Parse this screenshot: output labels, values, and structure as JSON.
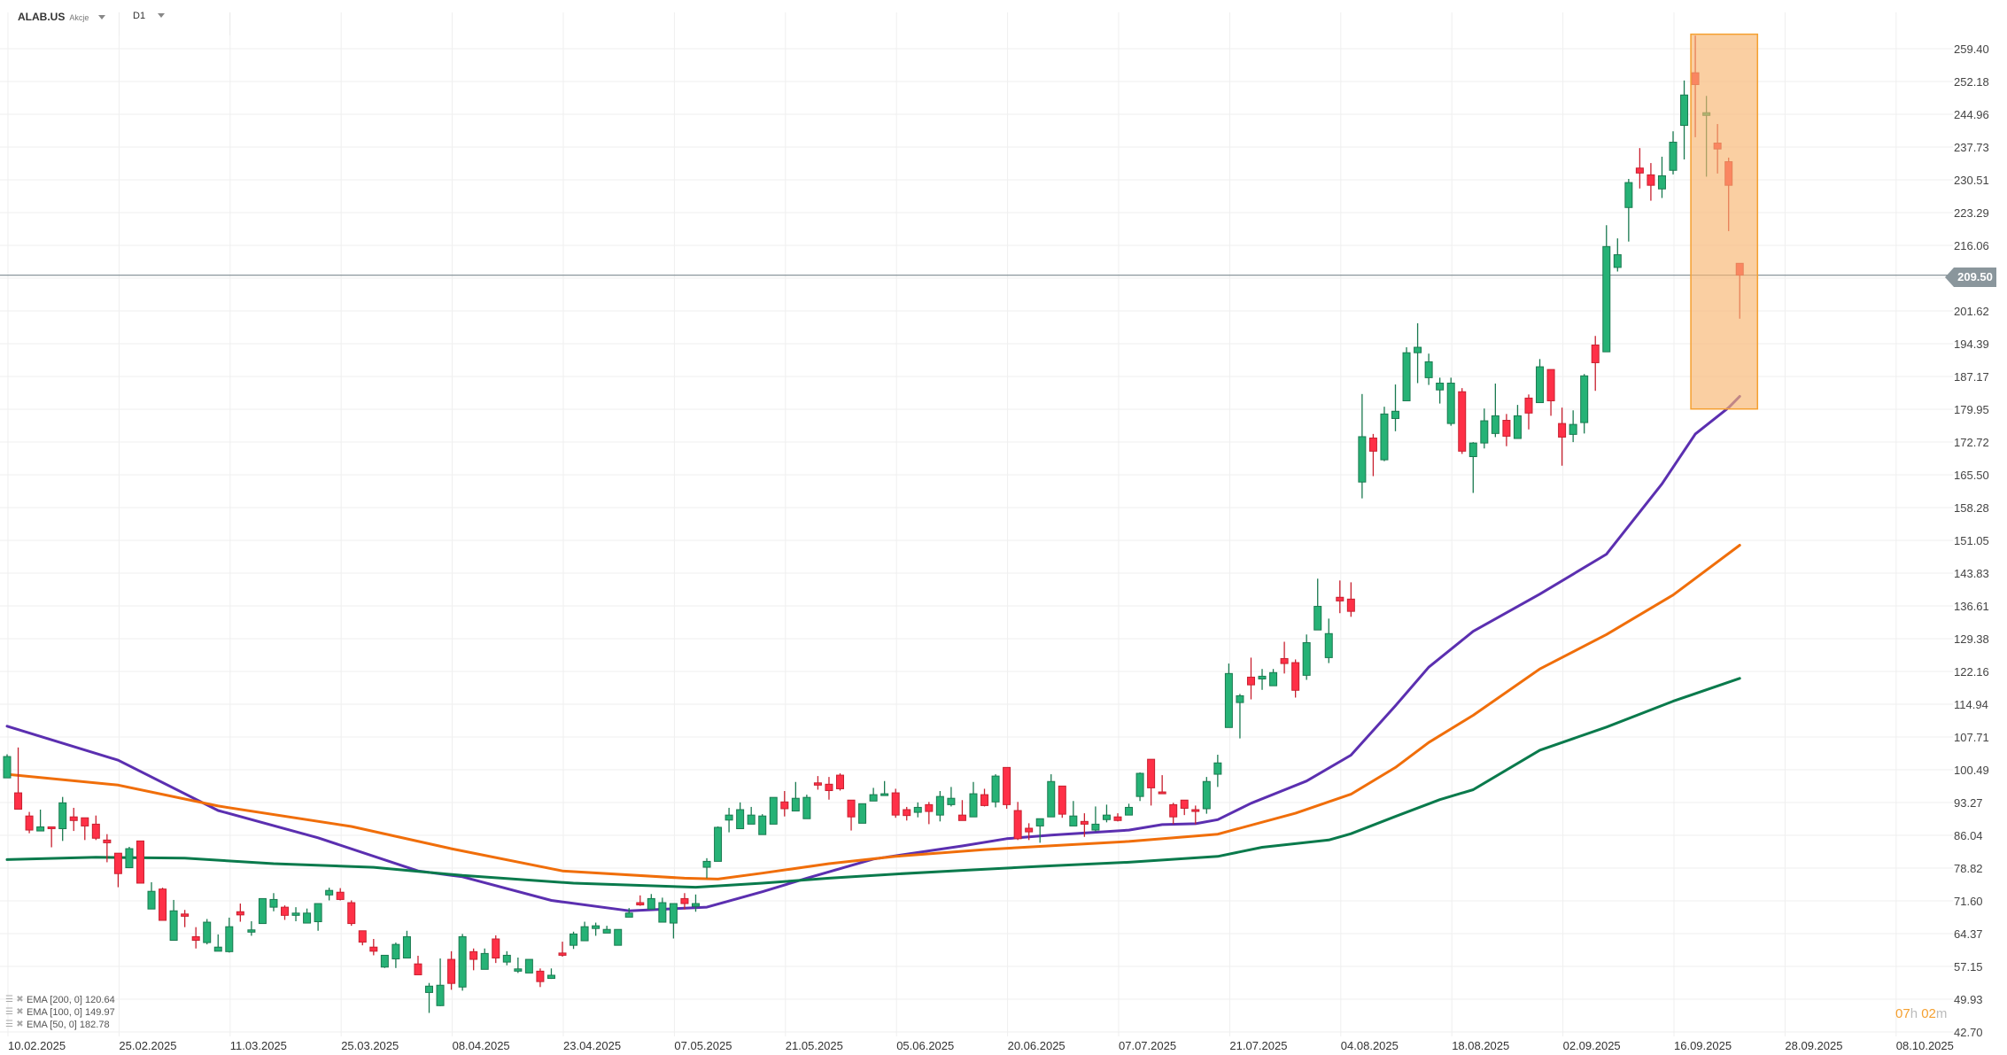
{
  "header": {
    "symbol": "ALAB.US",
    "instrument_type": "Akcje",
    "timeframe": "D1"
  },
  "legend": [
    {
      "label": "EMA [200,  0] 120.64",
      "color": "#0a7a4c"
    },
    {
      "label": "EMA [100,  0] 149.97",
      "color": "#f06e0a"
    },
    {
      "label": "EMA [50,  0] 182.78",
      "color": "#5b2fb0"
    }
  ],
  "current_price": "209.50",
  "countdown": {
    "hours": "07",
    "h": "h",
    "minutes": "02",
    "m": "m"
  },
  "colors": {
    "up": "#26b276",
    "up_border": "#1a7a50",
    "down": "#ff3047",
    "down_border": "#c8202f",
    "highlight": "#f7b570",
    "highlight_border": "#f5a030",
    "price_line": "#8a969c"
  },
  "chart_data": {
    "type": "candlestick",
    "title": "ALAB.US D1",
    "ylim": [
      42.7,
      259.4
    ],
    "grid": true,
    "yaxis": {
      "ticks": [
        "259.40",
        "252.18",
        "244.96",
        "237.73",
        "230.51",
        "223.29",
        "216.06",
        "208.84",
        "201.62",
        "194.39",
        "187.17",
        "179.95",
        "172.72",
        "165.50",
        "158.28",
        "151.05",
        "143.83",
        "136.61",
        "129.38",
        "122.16",
        "114.94",
        "107.71",
        "100.49",
        "93.27",
        "86.04",
        "78.82",
        "71.60",
        "64.37",
        "57.15",
        "49.93",
        "42.70"
      ],
      "hidden_tick": "208.84"
    },
    "xaxis": {
      "labels": [
        "10.02.2025",
        "25.02.2025",
        "11.03.2025",
        "25.03.2025",
        "08.04.2025",
        "23.04.2025",
        "07.05.2025",
        "21.05.2025",
        "05.06.2025",
        "20.06.2025",
        "07.07.2025",
        "21.07.2025",
        "04.08.2025",
        "18.08.2025",
        "02.09.2025",
        "16.09.2025",
        "28.09.2025",
        "08.10.2025"
      ],
      "bars_per_label": 10
    },
    "candles_ohlc": [
      [
        98.7,
        103.9,
        98.7,
        103.4
      ],
      [
        95.4,
        105.4,
        91.7,
        91.8
      ],
      [
        90.3,
        91.2,
        86.5,
        87.2
      ],
      [
        87.0,
        91.7,
        87.0,
        87.9
      ],
      [
        87.9,
        87.9,
        83.4,
        87.5
      ],
      [
        87.5,
        94.5,
        84.8,
        93.2
      ],
      [
        90.1,
        92.1,
        87.0,
        89.3
      ],
      [
        89.9,
        89.9,
        85.0,
        88.1
      ],
      [
        88.5,
        90.4,
        85.0,
        85.4
      ],
      [
        85.0,
        86.3,
        80.1,
        84.4
      ],
      [
        82.1,
        82.1,
        74.6,
        77.6
      ],
      [
        78.9,
        83.5,
        78.8,
        83.1
      ],
      [
        84.8,
        84.8,
        75.5,
        75.5
      ],
      [
        69.8,
        75.7,
        69.8,
        73.7
      ],
      [
        74.2,
        74.5,
        67.3,
        67.3
      ],
      [
        62.9,
        71.8,
        62.9,
        69.4
      ],
      [
        68.7,
        69.6,
        65.8,
        68.2
      ],
      [
        63.7,
        65.8,
        61.1,
        62.9
      ],
      [
        62.4,
        67.6,
        62.0,
        66.9
      ],
      [
        60.5,
        64.2,
        60.5,
        61.4
      ],
      [
        60.4,
        67.9,
        60.2,
        65.9
      ],
      [
        69.2,
        71.0,
        67.0,
        68.5
      ],
      [
        64.7,
        67.1,
        63.9,
        65.2
      ],
      [
        66.6,
        72.1,
        66.6,
        72.1
      ],
      [
        70.2,
        73.3,
        69.3,
        71.9
      ],
      [
        70.2,
        70.6,
        67.4,
        68.4
      ],
      [
        68.4,
        70.2,
        67.1,
        68.9
      ],
      [
        66.7,
        69.9,
        66.7,
        68.9
      ],
      [
        67.0,
        71.0,
        65.0,
        71.0
      ],
      [
        72.9,
        74.5,
        71.7,
        73.9
      ],
      [
        73.5,
        74.4,
        71.7,
        71.9
      ],
      [
        71.2,
        71.7,
        66.1,
        66.6
      ],
      [
        65.0,
        65.0,
        61.8,
        62.5
      ],
      [
        61.4,
        63.2,
        59.6,
        60.5
      ],
      [
        57.0,
        59.6,
        56.8,
        59.6
      ],
      [
        58.8,
        62.4,
        56.8,
        62.0
      ],
      [
        59.0,
        65.0,
        59.0,
        63.7
      ],
      [
        57.7,
        59.5,
        55.3,
        55.3
      ],
      [
        51.4,
        53.5,
        46.9,
        52.8
      ],
      [
        48.5,
        58.9,
        48.4,
        53.0
      ],
      [
        58.7,
        60.5,
        52.0,
        53.4
      ],
      [
        52.6,
        64.3,
        51.8,
        63.7
      ],
      [
        60.4,
        61.1,
        56.3,
        58.7
      ],
      [
        56.5,
        61.1,
        56.5,
        60.0
      ],
      [
        63.2,
        64.0,
        57.9,
        59.0
      ],
      [
        58.1,
        60.5,
        57.4,
        59.6
      ],
      [
        56.1,
        59.1,
        55.7,
        56.6
      ],
      [
        55.7,
        58.7,
        55.7,
        58.7
      ],
      [
        56.1,
        56.7,
        52.6,
        53.8
      ],
      [
        54.5,
        56.7,
        54.4,
        55.2
      ],
      [
        60.1,
        62.6,
        59.3,
        59.6
      ],
      [
        61.8,
        64.8,
        61.0,
        64.3
      ],
      [
        62.8,
        67.0,
        62.8,
        65.9
      ],
      [
        65.5,
        66.8,
        63.9,
        66.1
      ],
      [
        64.5,
        66.1,
        64.5,
        65.3
      ],
      [
        61.8,
        65.3,
        61.8,
        65.3
      ],
      [
        68.0,
        70.0,
        68.0,
        68.9
      ],
      [
        71.2,
        72.8,
        70.5,
        70.7
      ],
      [
        69.8,
        73.1,
        69.8,
        72.1
      ],
      [
        66.9,
        72.3,
        66.9,
        71.2
      ],
      [
        66.7,
        71.0,
        63.3,
        71.0
      ],
      [
        72.1,
        73.3,
        69.7,
        71.0
      ],
      [
        70.4,
        73.0,
        69.2,
        71.0
      ],
      [
        79.0,
        81.0,
        76.6,
        80.3
      ],
      [
        80.3,
        88.0,
        80.3,
        87.8
      ],
      [
        89.4,
        92.1,
        86.7,
        90.5
      ],
      [
        87.5,
        93.3,
        87.5,
        91.7
      ],
      [
        88.5,
        92.3,
        88.5,
        90.5
      ],
      [
        86.2,
        90.7,
        86.2,
        90.3
      ],
      [
        88.5,
        94.4,
        88.5,
        94.4
      ],
      [
        93.4,
        95.8,
        90.2,
        91.9
      ],
      [
        91.4,
        97.8,
        91.4,
        94.2
      ],
      [
        89.7,
        95.0,
        89.7,
        94.4
      ],
      [
        97.6,
        99.1,
        96.1,
        97.1
      ],
      [
        97.3,
        98.9,
        93.9,
        95.9
      ],
      [
        99.3,
        99.7,
        95.9,
        96.3
      ],
      [
        93.8,
        93.8,
        87.1,
        90.1
      ],
      [
        88.7,
        93.0,
        88.7,
        93.0
      ],
      [
        93.6,
        96.5,
        93.6,
        95.0
      ],
      [
        94.8,
        98.0,
        94.8,
        95.2
      ],
      [
        95.4,
        96.3,
        89.9,
        90.5
      ],
      [
        91.7,
        92.3,
        89.3,
        90.4
      ],
      [
        91.1,
        93.3,
        90.0,
        92.2
      ],
      [
        92.8,
        93.4,
        88.5,
        91.3
      ],
      [
        90.5,
        95.8,
        89.1,
        94.6
      ],
      [
        92.8,
        96.7,
        92.4,
        94.2
      ],
      [
        90.5,
        93.8,
        89.3,
        89.3
      ],
      [
        90.1,
        97.8,
        90.1,
        95.2
      ],
      [
        95.0,
        96.3,
        92.4,
        92.6
      ],
      [
        93.4,
        99.5,
        92.2,
        99.1
      ],
      [
        101.0,
        101.0,
        91.9,
        92.8
      ],
      [
        91.5,
        93.4,
        85.0,
        85.3
      ],
      [
        87.6,
        88.7,
        85.0,
        86.8
      ],
      [
        88.1,
        89.7,
        84.4,
        89.7
      ],
      [
        90.1,
        99.5,
        90.1,
        97.9
      ],
      [
        96.9,
        96.9,
        89.9,
        90.7
      ],
      [
        88.1,
        93.6,
        88.1,
        90.3
      ],
      [
        89.1,
        90.9,
        85.7,
        88.5
      ],
      [
        87.2,
        92.4,
        86.9,
        88.5
      ],
      [
        89.5,
        92.8,
        88.9,
        90.5
      ],
      [
        90.1,
        90.9,
        89.1,
        89.3
      ],
      [
        90.5,
        93.0,
        90.5,
        92.2
      ],
      [
        94.6,
        99.9,
        93.6,
        99.7
      ],
      [
        102.8,
        102.8,
        92.6,
        96.5
      ],
      [
        95.6,
        99.3,
        95.2,
        95.2
      ],
      [
        92.8,
        93.2,
        88.5,
        90.1
      ],
      [
        93.8,
        93.8,
        90.5,
        92.0
      ],
      [
        91.7,
        92.6,
        88.5,
        91.3
      ],
      [
        91.9,
        98.9,
        90.8,
        97.9
      ],
      [
        99.5,
        103.8,
        96.7,
        102.0
      ],
      [
        109.8,
        123.9,
        109.8,
        121.7
      ],
      [
        115.3,
        117.2,
        107.4,
        116.8
      ],
      [
        120.9,
        125.2,
        116.0,
        119.2
      ],
      [
        120.5,
        122.7,
        118.1,
        121.1
      ],
      [
        119.0,
        122.7,
        119.0,
        121.9
      ],
      [
        125.0,
        128.7,
        121.7,
        123.9
      ],
      [
        124.1,
        124.8,
        116.4,
        118.0
      ],
      [
        121.3,
        130.3,
        120.3,
        128.5
      ],
      [
        131.3,
        142.6,
        131.3,
        136.5
      ],
      [
        125.2,
        133.8,
        124.0,
        130.5
      ],
      [
        138.5,
        142.2,
        135.0,
        137.7
      ],
      [
        138.1,
        141.8,
        134.2,
        135.4
      ],
      [
        163.9,
        183.3,
        160.3,
        173.9
      ],
      [
        173.6,
        174.5,
        165.2,
        170.7
      ],
      [
        168.8,
        180.5,
        168.5,
        178.9
      ],
      [
        177.9,
        185.4,
        175.1,
        179.5
      ],
      [
        181.8,
        193.6,
        181.8,
        192.4
      ],
      [
        192.4,
        198.9,
        185.7,
        193.6
      ],
      [
        186.9,
        192.2,
        185.3,
        190.4
      ],
      [
        184.2,
        186.9,
        181.2,
        185.7
      ],
      [
        176.8,
        186.9,
        176.3,
        185.7
      ],
      [
        183.8,
        184.6,
        170.1,
        170.7
      ],
      [
        169.5,
        172.7,
        161.5,
        172.5
      ],
      [
        172.5,
        180.1,
        171.3,
        177.4
      ],
      [
        174.6,
        185.6,
        173.8,
        178.5
      ],
      [
        177.5,
        178.9,
        171.8,
        174.0
      ],
      [
        173.5,
        180.9,
        173.5,
        178.5
      ],
      [
        182.4,
        183.2,
        175.5,
        179.1
      ],
      [
        181.4,
        191.0,
        181.4,
        189.3
      ],
      [
        188.7,
        188.7,
        178.5,
        181.8
      ],
      [
        176.8,
        180.3,
        167.5,
        173.8
      ],
      [
        174.4,
        179.7,
        172.7,
        176.6
      ],
      [
        177.0,
        187.7,
        174.6,
        187.3
      ],
      [
        194.1,
        196.1,
        184.0,
        190.2
      ],
      [
        192.6,
        220.5,
        192.6,
        215.8
      ],
      [
        211.2,
        217.6,
        210.3,
        214.0
      ],
      [
        224.4,
        230.7,
        216.9,
        229.9
      ],
      [
        233.1,
        237.5,
        228.6,
        232.0
      ],
      [
        231.6,
        234.2,
        225.9,
        229.3
      ],
      [
        228.5,
        235.6,
        226.5,
        231.4
      ],
      [
        232.6,
        241.2,
        231.7,
        238.8
      ],
      [
        242.5,
        252.4,
        235.0,
        249.2
      ],
      [
        254.1,
        262.3,
        239.9,
        251.5
      ],
      [
        244.7,
        249.0,
        231.2,
        245.3
      ],
      [
        238.6,
        242.8,
        231.9,
        237.3
      ],
      [
        234.5,
        235.4,
        219.2,
        229.3
      ],
      [
        212.1,
        212.1,
        199.9,
        209.5
      ]
    ],
    "series": [
      {
        "name": "EMA 50",
        "color": "#5b2fb0",
        "points": [
          [
            0,
            110.1
          ],
          [
            10,
            102.6
          ],
          [
            19,
            91.5
          ],
          [
            28,
            85.5
          ],
          [
            37,
            78.2
          ],
          [
            41,
            76.9
          ],
          [
            49,
            71.7
          ],
          [
            56,
            69.4
          ],
          [
            63,
            70.2
          ],
          [
            68,
            73.6
          ],
          [
            72,
            76.6
          ],
          [
            78,
            80.8
          ],
          [
            86,
            83.7
          ],
          [
            90,
            85.3
          ],
          [
            94,
            86.1
          ],
          [
            101,
            87.2
          ],
          [
            104,
            88.4
          ],
          [
            107,
            88.6
          ],
          [
            109,
            89.5
          ],
          [
            112,
            93.1
          ],
          [
            117,
            98.0
          ],
          [
            121,
            103.7
          ],
          [
            125,
            114.6
          ],
          [
            128,
            123.1
          ],
          [
            132,
            131.0
          ],
          [
            138,
            139.2
          ],
          [
            144,
            148.0
          ],
          [
            149,
            163.5
          ],
          [
            152,
            174.5
          ],
          [
            155,
            180.3
          ],
          [
            156,
            182.78
          ]
        ]
      },
      {
        "name": "EMA 100",
        "color": "#f06e0a",
        "points": [
          [
            0,
            99.5
          ],
          [
            10,
            97.1
          ],
          [
            19,
            92.5
          ],
          [
            31,
            88.0
          ],
          [
            40,
            83.1
          ],
          [
            50,
            78.2
          ],
          [
            61,
            76.6
          ],
          [
            64,
            76.4
          ],
          [
            68,
            77.7
          ],
          [
            74,
            79.8
          ],
          [
            80,
            81.4
          ],
          [
            88,
            82.9
          ],
          [
            93,
            83.6
          ],
          [
            101,
            84.7
          ],
          [
            109,
            86.3
          ],
          [
            116,
            90.9
          ],
          [
            121,
            95.1
          ],
          [
            125,
            101.0
          ],
          [
            128,
            106.5
          ],
          [
            132,
            112.5
          ],
          [
            138,
            122.7
          ],
          [
            144,
            130.3
          ],
          [
            150,
            139.0
          ],
          [
            156,
            149.97
          ]
        ]
      },
      {
        "name": "EMA 200",
        "color": "#0a7a4c",
        "points": [
          [
            0,
            80.7
          ],
          [
            8,
            81.2
          ],
          [
            16,
            81.0
          ],
          [
            24,
            79.8
          ],
          [
            33,
            79.0
          ],
          [
            41,
            77.2
          ],
          [
            51,
            75.5
          ],
          [
            62,
            74.6
          ],
          [
            68,
            75.5
          ],
          [
            74,
            76.6
          ],
          [
            80,
            77.5
          ],
          [
            86,
            78.3
          ],
          [
            93,
            79.2
          ],
          [
            101,
            80.1
          ],
          [
            109,
            81.4
          ],
          [
            113,
            83.4
          ],
          [
            119,
            85.0
          ],
          [
            121,
            86.4
          ],
          [
            125,
            90.2
          ],
          [
            129,
            93.9
          ],
          [
            132,
            96.1
          ],
          [
            138,
            104.8
          ],
          [
            144,
            109.9
          ],
          [
            150,
            115.6
          ],
          [
            156,
            120.64
          ]
        ]
      }
    ],
    "highlight": {
      "from_bar": 151.6,
      "to_bar": 157.6,
      "from_price": 180.0,
      "to_price": 262.6
    },
    "current_price": 209.5
  }
}
